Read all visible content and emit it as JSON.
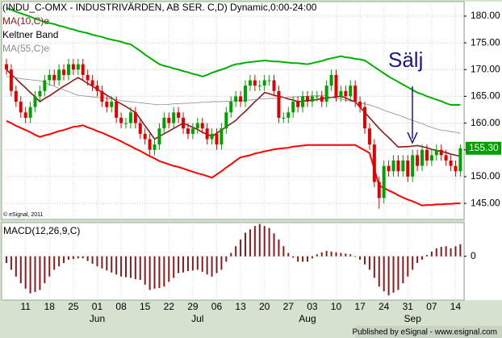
{
  "chart_data": [
    {
      "type": "candlestick",
      "title": "(INDU_C-OMX - INDUSTRIVÄRDEN, AB SER. C,D) Dynamic,0:00-24:00",
      "annotation": "Sälj",
      "copyright": "© eSignal, 2011",
      "publisher": "Published by eSignal - www.esignal.com",
      "up_color": "#00a000",
      "down_color": "#e00000",
      "categories": [
        null,
        null,
        null,
        null,
        "11",
        null,
        null,
        null,
        null,
        "18",
        null,
        null,
        null,
        null,
        "25",
        null,
        null,
        null,
        null,
        "01",
        null,
        null,
        null,
        null,
        "08",
        null,
        null,
        null,
        null,
        "15",
        null,
        null,
        null,
        null,
        "22",
        null,
        null,
        null,
        null,
        "29",
        null,
        null,
        null,
        null,
        "06",
        null,
        null,
        null,
        null,
        "13",
        null,
        null,
        null,
        null,
        "20",
        null,
        null,
        null,
        null,
        "27",
        null,
        null,
        null,
        null,
        "03",
        null,
        null,
        null,
        null,
        "10",
        null,
        null,
        null,
        null,
        "17",
        null,
        null,
        null,
        null,
        "24",
        null,
        null,
        null,
        null,
        "31",
        null,
        null,
        null,
        null,
        "07",
        null,
        null,
        null,
        null,
        "14",
        null
      ],
      "month_labels": [
        null,
        null,
        null,
        null,
        null,
        null,
        null,
        null,
        null,
        null,
        null,
        null,
        null,
        null,
        null,
        null,
        null,
        null,
        null,
        "Jun",
        null,
        null,
        null,
        null,
        null,
        null,
        null,
        null,
        null,
        null,
        null,
        null,
        null,
        null,
        null,
        null,
        null,
        null,
        null,
        null,
        "Jul",
        null,
        null,
        null,
        null,
        null,
        null,
        null,
        null,
        null,
        null,
        null,
        null,
        null,
        null,
        null,
        null,
        null,
        null,
        null,
        null,
        null,
        null,
        "Aug",
        null,
        null,
        null,
        null,
        null,
        null,
        null,
        null,
        null,
        null,
        null,
        null,
        null,
        null,
        null,
        null,
        null,
        null,
        null,
        null,
        null,
        "Sep",
        null,
        null,
        null,
        null,
        null,
        null,
        null,
        null,
        null,
        null
      ],
      "open": [
        171,
        170,
        166,
        164,
        162,
        161,
        163,
        165,
        166,
        168,
        169,
        168,
        170,
        169,
        171,
        170,
        171,
        169,
        168,
        167,
        166,
        164,
        163,
        164,
        161,
        160,
        160,
        162,
        160,
        158,
        157,
        155,
        156,
        159,
        161,
        160,
        162,
        161,
        159,
        158,
        159,
        160,
        159,
        157,
        158,
        156,
        159,
        162,
        164,
        165,
        164,
        167,
        168,
        167,
        167,
        168,
        168,
        166,
        161,
        161,
        162,
        164,
        163,
        165,
        164,
        165,
        165,
        164,
        167,
        169,
        165,
        166,
        165,
        167,
        164,
        163,
        159,
        156,
        149,
        146,
        152,
        151,
        153,
        151,
        153,
        150,
        154,
        152,
        155,
        153,
        154,
        155,
        154,
        153,
        152,
        151
      ],
      "high": [
        172,
        171,
        167,
        165,
        163,
        164,
        166,
        167,
        169,
        170,
        170,
        171,
        171,
        172,
        172,
        172,
        172,
        170,
        169,
        168,
        167,
        165,
        165,
        165,
        162,
        161,
        163,
        163,
        161,
        159,
        158,
        157,
        160,
        162,
        162,
        163,
        163,
        162,
        160,
        160,
        161,
        161,
        160,
        159,
        159,
        160,
        163,
        165,
        166,
        166,
        168,
        169,
        169,
        168,
        169,
        169,
        169,
        167,
        162,
        163,
        165,
        165,
        166,
        166,
        166,
        166,
        166,
        168,
        170,
        170,
        167,
        167,
        168,
        168,
        165,
        164,
        160,
        157,
        150,
        153,
        153,
        154,
        154,
        154,
        154,
        155,
        155,
        156,
        156,
        155,
        156,
        156,
        155,
        154,
        153,
        156
      ],
      "low": [
        169,
        165,
        163,
        161,
        160,
        160,
        162,
        164,
        165,
        167,
        167,
        167,
        168,
        168,
        169,
        169,
        168,
        167,
        166,
        165,
        163,
        162,
        162,
        160,
        159,
        159,
        159,
        159,
        157,
        156,
        154,
        154,
        155,
        158,
        159,
        159,
        160,
        158,
        157,
        157,
        158,
        158,
        156,
        156,
        155,
        155,
        158,
        161,
        163,
        163,
        163,
        166,
        166,
        166,
        166,
        167,
        165,
        160,
        160,
        160,
        161,
        162,
        162,
        163,
        163,
        164,
        163,
        163,
        166,
        164,
        164,
        164,
        164,
        163,
        162,
        158,
        155,
        148,
        144,
        145,
        150,
        150,
        150,
        150,
        149,
        149,
        151,
        151,
        152,
        152,
        153,
        153,
        152,
        151,
        150,
        150
      ],
      "close": [
        170,
        166,
        164,
        162,
        161,
        163,
        165,
        166,
        168,
        169,
        168,
        170,
        169,
        171,
        170,
        171,
        169,
        168,
        167,
        166,
        164,
        163,
        164,
        161,
        160,
        160,
        162,
        160,
        158,
        157,
        155,
        156,
        159,
        161,
        160,
        162,
        161,
        159,
        158,
        159,
        160,
        159,
        157,
        158,
        156,
        159,
        162,
        164,
        165,
        164,
        167,
        168,
        167,
        167,
        168,
        168,
        166,
        161,
        161,
        162,
        164,
        163,
        165,
        164,
        165,
        165,
        164,
        167,
        169,
        165,
        166,
        165,
        167,
        164,
        163,
        159,
        156,
        149,
        146,
        152,
        151,
        153,
        151,
        153,
        150,
        154,
        152,
        155,
        153,
        154,
        155,
        154,
        153,
        152,
        151,
        155.3
      ],
      "last_value": {
        "value": 155.3,
        "label": "155.30"
      },
      "series": [
        {
          "name": "MA(10,C)e",
          "color": "#8b1a1a",
          "values": [
            170,
            169.1,
            168.3,
            167.4,
            166.6,
            165.7,
            164.9,
            164,
            164.6,
            165.1,
            165.7,
            166.3,
            166.9,
            167.4,
            168,
            168.5,
            168,
            167.4,
            166.9,
            166.3,
            165.8,
            165.2,
            164.7,
            164.1,
            163.6,
            163.1,
            162.5,
            162,
            160.8,
            159.5,
            158.3,
            157,
            157.5,
            158,
            158.5,
            159,
            159.5,
            160,
            159.6,
            159.2,
            158.8,
            158.3,
            157.9,
            157.5,
            158.1,
            158.7,
            159.3,
            159.9,
            160.5,
            161.4,
            162.2,
            163.1,
            164,
            164.8,
            165.7,
            165.5,
            165.2,
            165,
            164.8,
            164.5,
            164.3,
            164,
            164.1,
            164.2,
            164.3,
            164.4,
            164.6,
            164.7,
            164.8,
            164.9,
            165,
            164.7,
            164.3,
            164,
            163,
            162,
            161,
            160,
            159,
            158.1,
            157.3,
            156.4,
            155.5,
            155.6,
            155.6,
            155.7,
            155.8,
            155.6,
            155.4,
            155.1,
            154.9,
            154.7,
            154.5,
            154.2,
            154,
            153.8
          ]
        },
        {
          "name": "Keltner Band",
          "color": "#00b000",
          "lower_color": "#ff0000",
          "values": [
            181.5,
            181.2,
            180.8,
            180.5,
            180.2,
            179.9,
            179.5,
            179.2,
            178.9,
            178.7,
            178.5,
            178.2,
            178,
            177.7,
            177.5,
            177.2,
            177,
            176.8,
            176.5,
            176.3,
            176.1,
            175.8,
            175.6,
            175.4,
            175.2,
            174.9,
            174.7,
            174.1,
            173.5,
            172.8,
            172.2,
            171.6,
            171,
            170.7,
            170.5,
            170.2,
            170,
            169.7,
            169.5,
            169.2,
            169,
            168.7,
            169,
            169.4,
            169.7,
            170,
            170.3,
            170.7,
            171,
            171.1,
            171.3,
            171.4,
            171.5,
            171.6,
            171.7,
            171.6,
            171.5,
            171.5,
            171.4,
            171.3,
            171.2,
            171.2,
            171.1,
            171,
            171.2,
            171.4,
            171.6,
            171.9,
            172.1,
            172.3,
            172.5,
            172.3,
            172.2,
            172,
            171.9,
            171.7,
            171.1,
            170.5,
            169.9,
            169.3,
            168.7,
            168.2,
            167.7,
            167.2,
            166.7,
            166.2,
            165.7,
            165.4,
            165,
            164.7,
            164.4,
            164.1,
            163.7,
            163.4,
            163.4,
            163.4
          ],
          "lower_values": [
            160.4,
            160,
            159.5,
            159.1,
            158.7,
            158.3,
            157.8,
            157.4,
            157.7,
            157.9,
            158.2,
            158.5,
            158.7,
            159,
            159.3,
            159.4,
            159.6,
            159.2,
            158.9,
            158.5,
            158.2,
            157.8,
            157.4,
            157,
            156.6,
            156.1,
            155.7,
            155.2,
            154.8,
            154.3,
            153.8,
            153.4,
            152.9,
            152.6,
            152.3,
            152,
            151.8,
            151.5,
            151.2,
            150.9,
            150.6,
            150.4,
            150.1,
            149.8,
            150.4,
            151,
            151.7,
            152.3,
            153,
            153.6,
            153.8,
            154,
            154.3,
            154.5,
            154.7,
            154.9,
            155.1,
            155.2,
            155.3,
            155.4,
            155.6,
            155.7,
            155.8,
            155.9,
            155.9,
            155.9,
            155.9,
            155.9,
            155.9,
            155.9,
            155.9,
            155.9,
            155.9,
            155.9,
            155.4,
            154.9,
            154.4,
            151.4,
            148.3,
            147.9,
            147.4,
            147,
            146.5,
            146.1,
            145.7,
            145.4,
            145,
            144.6,
            144.7,
            144.7,
            144.8,
            144.8,
            144.9,
            144.9,
            145,
            145
          ]
        },
        {
          "name": "MA(55,C)e",
          "color": "#8c8c8c",
          "values": [
            168.7,
            168.6,
            168.5,
            168.3,
            168.2,
            168.1,
            168,
            167.9,
            167.6,
            167.2,
            166.9,
            166.5,
            166.2,
            165.9,
            165.5,
            165.2,
            165.1,
            165,
            164.9,
            164.8,
            164.7,
            164.6,
            164.5,
            164.4,
            164.2,
            164.1,
            164,
            163.9,
            163.8,
            163.7,
            163.6,
            163.5,
            163.4,
            163.5,
            163.5,
            163.6,
            163.6,
            163.7,
            163.7,
            163.8,
            163.8,
            163.9,
            163.9,
            164,
            164,
            164,
            164.1,
            164.1,
            164.2,
            164.2,
            164.3,
            164.3,
            164.4,
            164.5,
            164.5,
            164.6,
            164.6,
            164.7,
            164.8,
            164.8,
            164.9,
            164.9,
            165,
            165,
            165.1,
            165.1,
            165.2,
            165,
            164.8,
            164.6,
            164.5,
            164.3,
            164.1,
            163.9,
            163.7,
            163.6,
            163.4,
            163.1,
            162.8,
            162.4,
            162.1,
            161.8,
            161.5,
            161.2,
            160.8,
            160.5,
            160.2,
            159.9,
            159.5,
            159.2,
            158.9,
            158.7,
            158.6,
            158.4,
            158.3,
            158.1
          ]
        }
      ],
      "ylim": [
        142,
        182.7
      ],
      "yticks": [
        {
          "value": 145,
          "label": "145.00"
        },
        {
          "value": 150,
          "label": "150.00"
        },
        {
          "value": 155,
          "label": "155.00"
        },
        {
          "value": 160,
          "label": "160.00"
        },
        {
          "value": 165,
          "label": "165.00"
        },
        {
          "value": 170,
          "label": "170.00"
        },
        {
          "value": 175,
          "label": "175.00"
        },
        {
          "value": 180,
          "label": "180.00"
        }
      ],
      "grid": true
    },
    {
      "type": "bar",
      "title": "MACD(12,26,9,C)",
      "color": "#8b1a1a",
      "values": [
        -1,
        -2,
        -3,
        -4,
        -4.8,
        -5.5,
        -5.3,
        -5,
        -4,
        -3,
        -2,
        -1.5,
        -1,
        -0.5,
        -0.4,
        -0.3,
        -0.3,
        -0.7,
        -1.1,
        -1.5,
        -1.8,
        -2.1,
        -2.4,
        -2.7,
        -3,
        -3.1,
        -3.2,
        -3.4,
        -3.5,
        -4.2,
        -5,
        -4.8,
        -4.7,
        -4.5,
        -3.8,
        -3.2,
        -2.5,
        -2.4,
        -2.2,
        -2.1,
        -2,
        -2.3,
        -2.7,
        -3,
        -2.5,
        -2,
        -0.8,
        0.5,
        1.5,
        2.5,
        3.5,
        4,
        4.5,
        4.8,
        4.5,
        4.2,
        3.4,
        2.5,
        1.5,
        0.5,
        -0.2,
        -0.8,
        -0.8,
        -0.8,
        -0.3,
        0.3,
        0.6,
        0.8,
        0.7,
        0.6,
        0.5,
        0.4,
        0.3,
        -0.1,
        -0.5,
        -1.2,
        -2,
        -3.2,
        -4.5,
        -5.2,
        -5.8,
        -5.4,
        -5,
        -4,
        -3,
        -2,
        -1,
        -0.5,
        0.2,
        0.7,
        1.2,
        1.4,
        1.5,
        1.2,
        1.5,
        1.8
      ],
      "ylim": [
        -6.5,
        5
      ],
      "yticks": [
        0
      ],
      "grid": true
    }
  ]
}
